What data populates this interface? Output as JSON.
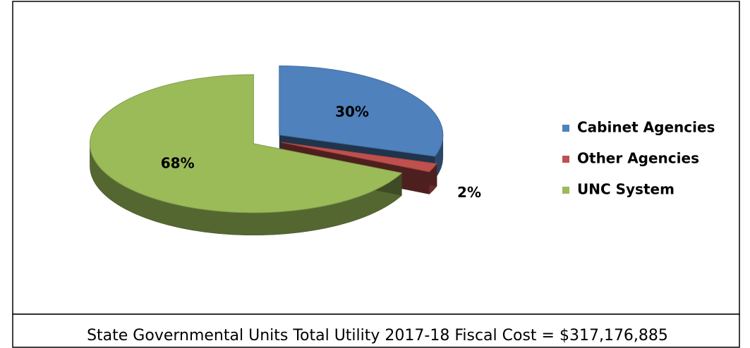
{
  "chart_data": {
    "type": "pie",
    "categories": [
      "Cabinet Agencies",
      "Other Agencies",
      "UNC System"
    ],
    "values": [
      30,
      2,
      68
    ],
    "value_labels": [
      "30%",
      "2%",
      "68%"
    ],
    "colors": [
      "#4f81bd",
      "#c0504d",
      "#9bbb59"
    ],
    "legend": "right",
    "caption": "State Governmental Units Total Utility 2017-18 Fiscal Cost = $317,176,885"
  }
}
